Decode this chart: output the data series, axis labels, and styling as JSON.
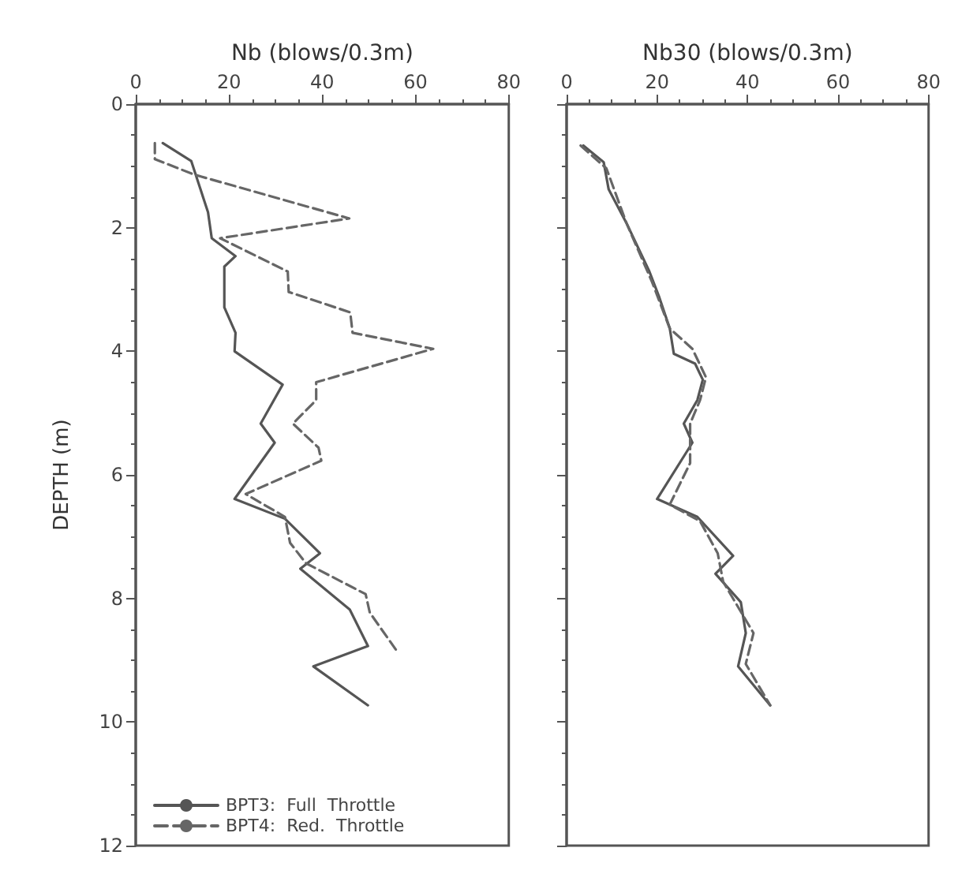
{
  "chart_data": [
    {
      "type": "line",
      "xlabel": "Nb (blows/0.3m)",
      "ylabel": "DEPTH (m)",
      "xlim": [
        0,
        80
      ],
      "xticks": [
        0,
        20,
        40,
        60,
        80
      ],
      "ylim": [
        12,
        0
      ],
      "yticks": [
        0,
        2,
        4,
        6,
        8,
        10,
        12
      ],
      "grid": false,
      "legend": "bottom left",
      "marker": "none",
      "series": [
        {
          "name": "BPT3:  Full  Throttle",
          "color": "#555555",
          "line_style": "solid",
          "x": [
            5.8,
            11.9,
            15.5,
            16.3,
            21.4,
            19,
            19,
            21.4,
            21.2,
            31.5,
            26.8,
            29.8,
            21.2,
            32,
            39.5,
            35.3,
            45.9,
            49.8,
            38.1,
            49.8
          ],
          "values": [
            0.63,
            0.92,
            1.75,
            2.17,
            2.46,
            2.63,
            3.29,
            3.7,
            4.0,
            4.54,
            5.17,
            5.48,
            6.39,
            6.71,
            7.27,
            7.52,
            8.18,
            8.77,
            9.1,
            9.73
          ]
        },
        {
          "name": "BPT4:  Red.  Throttle",
          "color": "#666666",
          "line_style": "dashed",
          "x": [
            4.1,
            4.1,
            12.5,
            45.8,
            18.1,
            32.6,
            32.8,
            46,
            46.5,
            63.8,
            38.7,
            38.7,
            33.7,
            39.2,
            39.8,
            23.6,
            32,
            33.1,
            36.5,
            49.3,
            50.2,
            55.8
          ],
          "values": [
            0.63,
            0.89,
            1.14,
            1.85,
            2.17,
            2.71,
            3.04,
            3.37,
            3.7,
            3.96,
            4.5,
            4.79,
            5.17,
            5.56,
            5.77,
            6.31,
            6.68,
            7.1,
            7.43,
            7.93,
            8.23,
            8.83
          ]
        }
      ]
    },
    {
      "type": "line",
      "xlabel": "Nb30 (blows/0.3m)",
      "xlim": [
        0,
        80
      ],
      "xticks": [
        0,
        20,
        40,
        60,
        80
      ],
      "ylim": [
        12,
        0
      ],
      "yticks": [
        0,
        2,
        4,
        6,
        8,
        10,
        12
      ],
      "tick_labels": "x",
      "grid": false,
      "legend": false,
      "marker": "none",
      "series": [
        {
          "color": "#555555",
          "line_style": "solid",
          "x": [
            3.7,
            8.2,
            9.3,
            13.2,
            18.3,
            20.5,
            22.8,
            23.7,
            28.4,
            30.1,
            28.9,
            25.9,
            27.8,
            20,
            28.9,
            36.8,
            32.9,
            38.5,
            39.6,
            37.9,
            45
          ],
          "values": [
            0.67,
            0.94,
            1.38,
            1.92,
            2.71,
            3.13,
            3.63,
            4.04,
            4.2,
            4.46,
            4.79,
            5.17,
            5.48,
            6.39,
            6.68,
            7.31,
            7.6,
            8.06,
            8.56,
            9.1,
            9.73
          ]
        },
        {
          "color": "#666666",
          "line_style": "dashed",
          "x": [
            3.1,
            8.8,
            13.2,
            18.9,
            22.8,
            27.8,
            30.8,
            29.5,
            27.3,
            27.3,
            22.8,
            29.5,
            33.4,
            34.6,
            41.3,
            39.6,
            45
          ],
          "values": [
            0.67,
            1.04,
            1.92,
            2.88,
            3.63,
            3.96,
            4.42,
            4.79,
            5.17,
            5.81,
            6.48,
            6.75,
            7.27,
            7.73,
            8.56,
            9.06,
            9.73
          ]
        }
      ]
    }
  ]
}
